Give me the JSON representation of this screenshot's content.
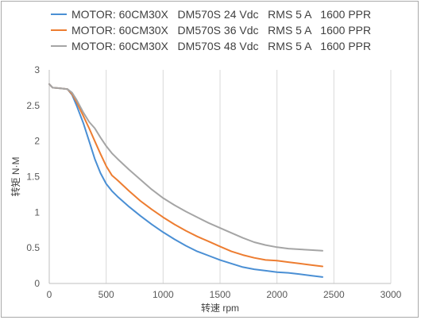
{
  "chart_data": {
    "type": "line",
    "title": "",
    "xlabel": "转速 rpm",
    "ylabel": "转矩 N·M",
    "xlim": [
      0,
      3000
    ],
    "ylim": [
      0,
      3
    ],
    "xticks": [
      0,
      500,
      1000,
      1500,
      2000,
      2500,
      3000
    ],
    "yticks": [
      0,
      0.5,
      1,
      1.5,
      2,
      2.5,
      3
    ],
    "grid": "vertical",
    "legend_position": "top",
    "series": [
      {
        "name": "MOTOR: 60CM30X   DM570S 24 Vdc   RMS 5 A   1600 PPR",
        "color": "#4a8fd4",
        "x": [
          0,
          30,
          100,
          160,
          200,
          240,
          300,
          350,
          400,
          450,
          500,
          550,
          600,
          700,
          800,
          900,
          1000,
          1100,
          1200,
          1300,
          1400,
          1500,
          1600,
          1700,
          1800,
          1900,
          2000,
          2100,
          2200,
          2300,
          2400
        ],
        "y": [
          2.8,
          2.75,
          2.74,
          2.73,
          2.65,
          2.5,
          2.25,
          2.0,
          1.75,
          1.55,
          1.4,
          1.3,
          1.22,
          1.08,
          0.95,
          0.83,
          0.72,
          0.62,
          0.53,
          0.45,
          0.39,
          0.33,
          0.28,
          0.23,
          0.2,
          0.18,
          0.16,
          0.15,
          0.13,
          0.11,
          0.09
        ]
      },
      {
        "name": "MOTOR: 60CM30X   DM570S 36 Vdc   RMS 5 A   1600 PPR",
        "color": "#ed7d31",
        "x": [
          0,
          30,
          100,
          160,
          200,
          240,
          300,
          350,
          400,
          450,
          500,
          550,
          600,
          700,
          800,
          900,
          1000,
          1100,
          1200,
          1300,
          1400,
          1500,
          1600,
          1700,
          1800,
          1900,
          2000,
          2100,
          2200,
          2300,
          2400
        ],
        "y": [
          2.8,
          2.75,
          2.74,
          2.73,
          2.66,
          2.55,
          2.35,
          2.18,
          2.0,
          1.82,
          1.65,
          1.52,
          1.45,
          1.3,
          1.16,
          1.04,
          0.93,
          0.83,
          0.74,
          0.66,
          0.59,
          0.52,
          0.45,
          0.4,
          0.36,
          0.33,
          0.32,
          0.3,
          0.28,
          0.26,
          0.24
        ]
      },
      {
        "name": "MOTOR: 60CM30X   DM570S 48 Vdc   RMS 5 A   1600 PPR",
        "color": "#a5a5a5",
        "x": [
          0,
          30,
          100,
          160,
          200,
          240,
          300,
          350,
          400,
          450,
          500,
          550,
          600,
          700,
          800,
          900,
          1000,
          1100,
          1200,
          1300,
          1400,
          1500,
          1600,
          1700,
          1800,
          1900,
          2000,
          2100,
          2200,
          2300,
          2400
        ],
        "y": [
          2.8,
          2.75,
          2.74,
          2.73,
          2.68,
          2.58,
          2.4,
          2.27,
          2.18,
          2.05,
          1.93,
          1.83,
          1.75,
          1.6,
          1.46,
          1.32,
          1.2,
          1.1,
          1.01,
          0.93,
          0.85,
          0.78,
          0.71,
          0.64,
          0.58,
          0.54,
          0.51,
          0.49,
          0.48,
          0.47,
          0.46
        ]
      }
    ]
  }
}
